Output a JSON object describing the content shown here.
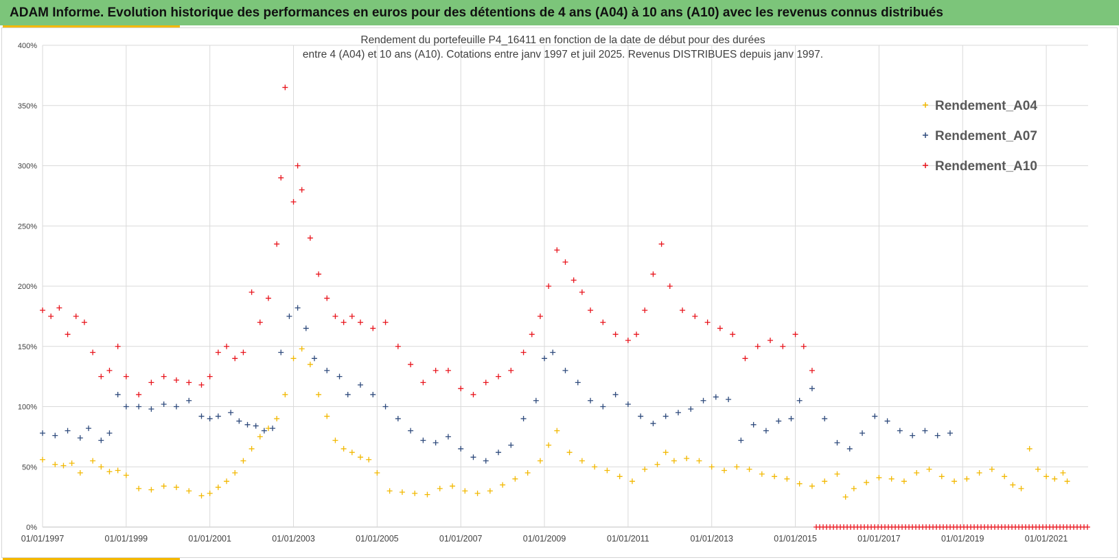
{
  "header": {
    "banner_title": "ADAM Informe. Evolution historique des performances en euros pour des détentions de 4 ans (A04) à 10 ans (A10) avec les revenus connus distribués",
    "banner_color": "#7cc57a",
    "accent_color": "#f5b800"
  },
  "chart_data": {
    "type": "scatter",
    "marker": "+",
    "title_lines": [
      "Rendement du portefeuille P4_16411 en fonction de la date de début pour des durées",
      "entre 4 (A04) et 10 ans (A10). Cotations  entre janv 1997 et juil 2025. Revenus DISTRIBUES depuis janv 1997."
    ],
    "xlabel": "",
    "ylabel": "",
    "x_ticks": [
      "01/01/1997",
      "01/01/1999",
      "01/01/2001",
      "01/01/2003",
      "01/01/2005",
      "01/01/2007",
      "01/01/2009",
      "01/01/2011",
      "01/01/2013",
      "01/01/2015",
      "01/01/2017",
      "01/01/2019",
      "01/01/2021"
    ],
    "y_ticks": [
      "0%",
      "50%",
      "100%",
      "150%",
      "200%",
      "250%",
      "300%",
      "350%",
      "400%"
    ],
    "xlim": [
      1997.0,
      2022.0
    ],
    "ylim": [
      0,
      400
    ],
    "grid": true,
    "legend_position": "top-right",
    "series": [
      {
        "name": "Rendement_A04",
        "color": "#f2b800",
        "x": [
          1997.0,
          1997.3,
          1997.5,
          1997.7,
          1997.9,
          1998.2,
          1998.4,
          1998.6,
          1998.8,
          1999.0,
          1999.3,
          1999.6,
          1999.9,
          2000.2,
          2000.5,
          2000.8,
          2001.0,
          2001.2,
          2001.4,
          2001.6,
          2001.8,
          2002.0,
          2002.2,
          2002.4,
          2002.6,
          2002.8,
          2003.0,
          2003.2,
          2003.4,
          2003.6,
          2003.8,
          2004.0,
          2004.2,
          2004.4,
          2004.6,
          2004.8,
          2005.0,
          2005.3,
          2005.6,
          2005.9,
          2006.2,
          2006.5,
          2006.8,
          2007.1,
          2007.4,
          2007.7,
          2008.0,
          2008.3,
          2008.6,
          2008.9,
          2009.1,
          2009.3,
          2009.6,
          2009.9,
          2010.2,
          2010.5,
          2010.8,
          2011.1,
          2011.4,
          2011.7,
          2011.9,
          2012.1,
          2012.4,
          2012.7,
          2013.0,
          2013.3,
          2013.6,
          2013.9,
          2014.2,
          2014.5,
          2014.8,
          2015.1,
          2015.4,
          2015.7,
          2016.0,
          2016.2,
          2016.4,
          2016.7,
          2017.0,
          2017.3,
          2017.6,
          2017.9,
          2018.2,
          2018.5,
          2018.8,
          2019.1,
          2019.4,
          2019.7,
          2020.0,
          2020.2,
          2020.4,
          2020.6,
          2020.8,
          2021.0,
          2021.2,
          2021.4,
          2021.5
        ],
        "y": [
          56,
          52,
          51,
          53,
          45,
          55,
          50,
          46,
          47,
          43,
          32,
          31,
          34,
          33,
          30,
          26,
          28,
          33,
          38,
          45,
          55,
          65,
          75,
          82,
          90,
          110,
          140,
          148,
          135,
          110,
          92,
          72,
          65,
          62,
          58,
          56,
          45,
          30,
          29,
          28,
          27,
          32,
          34,
          30,
          28,
          30,
          35,
          40,
          45,
          55,
          68,
          80,
          62,
          55,
          50,
          47,
          42,
          38,
          48,
          52,
          62,
          55,
          57,
          55,
          50,
          47,
          50,
          48,
          44,
          42,
          40,
          36,
          34,
          38,
          44,
          25,
          32,
          37,
          41,
          40,
          38,
          45,
          48,
          42,
          38,
          40,
          45,
          48,
          42,
          35,
          32,
          65,
          48,
          42,
          40,
          45,
          38
        ]
      },
      {
        "name": "Rendement_A07",
        "color": "#2e4a7c",
        "x": [
          1997.0,
          1997.3,
          1997.6,
          1997.9,
          1998.1,
          1998.4,
          1998.6,
          1998.8,
          1999.0,
          1999.3,
          1999.6,
          1999.9,
          2000.2,
          2000.5,
          2000.8,
          2001.0,
          2001.2,
          2001.5,
          2001.7,
          2001.9,
          2002.1,
          2002.3,
          2002.5,
          2002.7,
          2002.9,
          2003.1,
          2003.3,
          2003.5,
          2003.8,
          2004.1,
          2004.3,
          2004.6,
          2004.9,
          2005.2,
          2005.5,
          2005.8,
          2006.1,
          2006.4,
          2006.7,
          2007.0,
          2007.3,
          2007.6,
          2007.9,
          2008.2,
          2008.5,
          2008.8,
          2009.0,
          2009.2,
          2009.5,
          2009.8,
          2010.1,
          2010.4,
          2010.7,
          2011.0,
          2011.3,
          2011.6,
          2011.9,
          2012.2,
          2012.5,
          2012.8,
          2013.1,
          2013.4,
          2013.7,
          2014.0,
          2014.3,
          2014.6,
          2014.9,
          2015.1,
          2015.4,
          2015.7,
          2016.0,
          2016.3,
          2016.6,
          2016.9,
          2017.2,
          2017.5,
          2017.8,
          2018.1,
          2018.4,
          2018.7
        ],
        "y": [
          78,
          76,
          80,
          74,
          82,
          72,
          78,
          110,
          100,
          100,
          98,
          102,
          100,
          105,
          92,
          90,
          92,
          95,
          88,
          85,
          84,
          80,
          82,
          145,
          175,
          182,
          165,
          140,
          130,
          125,
          110,
          118,
          110,
          100,
          90,
          80,
          72,
          70,
          75,
          65,
          58,
          55,
          62,
          68,
          90,
          105,
          140,
          145,
          130,
          120,
          105,
          100,
          110,
          102,
          92,
          86,
          92,
          95,
          98,
          105,
          108,
          106,
          72,
          85,
          80,
          88,
          90,
          105,
          115,
          90,
          70,
          65,
          78,
          92,
          88,
          80,
          76,
          80,
          76,
          78
        ]
      },
      {
        "name": "Rendement_A10",
        "color": "#e8141c",
        "x": [
          1997.0,
          1997.2,
          1997.4,
          1997.6,
          1997.8,
          1998.0,
          1998.2,
          1998.4,
          1998.6,
          1998.8,
          1999.0,
          1999.3,
          1999.6,
          1999.9,
          2000.2,
          2000.5,
          2000.8,
          2001.0,
          2001.2,
          2001.4,
          2001.6,
          2001.8,
          2002.0,
          2002.2,
          2002.4,
          2002.6,
          2002.7,
          2002.8,
          2003.0,
          2003.1,
          2003.2,
          2003.4,
          2003.6,
          2003.8,
          2004.0,
          2004.2,
          2004.4,
          2004.6,
          2004.9,
          2005.2,
          2005.5,
          2005.8,
          2006.1,
          2006.4,
          2006.7,
          2007.0,
          2007.3,
          2007.6,
          2007.9,
          2008.2,
          2008.5,
          2008.7,
          2008.9,
          2009.1,
          2009.3,
          2009.5,
          2009.7,
          2009.9,
          2010.1,
          2010.4,
          2010.7,
          2011.0,
          2011.2,
          2011.4,
          2011.6,
          2011.8,
          2012.0,
          2012.3,
          2012.6,
          2012.9,
          2013.2,
          2013.5,
          2013.8,
          2014.1,
          2014.4,
          2014.7,
          2015.0,
          2015.2,
          2015.4
        ],
        "y": [
          180,
          175,
          182,
          160,
          175,
          170,
          145,
          125,
          130,
          150,
          125,
          110,
          120,
          125,
          122,
          120,
          118,
          125,
          145,
          150,
          140,
          145,
          195,
          170,
          190,
          235,
          290,
          365,
          270,
          300,
          280,
          240,
          210,
          190,
          175,
          170,
          175,
          170,
          165,
          170,
          150,
          135,
          120,
          130,
          130,
          115,
          110,
          120,
          125,
          130,
          145,
          160,
          175,
          200,
          230,
          220,
          205,
          195,
          180,
          170,
          160,
          155,
          160,
          180,
          210,
          235,
          200,
          180,
          175,
          170,
          165,
          160,
          140,
          150,
          155,
          150,
          160,
          150,
          130
        ]
      },
      {
        "name": "",
        "color": "#e8141c",
        "x_range": [
          2015.5,
          2022.0
        ],
        "y_constant": 0
      }
    ]
  }
}
